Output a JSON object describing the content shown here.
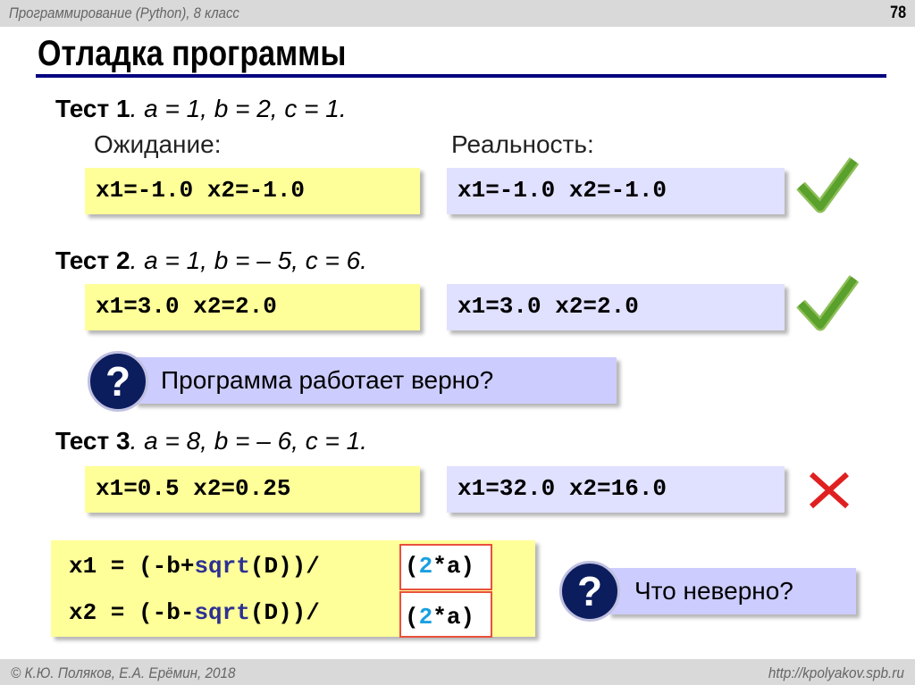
{
  "header": {
    "course": "Программирование (Python), 8 класс",
    "page_number": "78"
  },
  "title": "Отладка программы",
  "labels": {
    "expected": "Ожидание:",
    "actual": "Реальность:"
  },
  "tests": [
    {
      "name": "Тест 1",
      "params": ". a = 1, b = 2, c = 1.",
      "expected": "x1=-1.0 x2=-1.0",
      "actual": "x1=-1.0 x2=-1.0",
      "result": "pass"
    },
    {
      "name": "Тест 2",
      "params": ". a = 1, b = – 5, c = 6.",
      "expected": "x1=3.0 x2=2.0",
      "actual": "x1=3.0 x2=2.0",
      "result": "pass"
    },
    {
      "name": "Тест 3",
      "params": ". a = 8, b = – 6, c = 1.",
      "expected": "x1=0.5 x2=0.25",
      "actual": "x1=32.0 x2=16.0",
      "result": "fail"
    }
  ],
  "questions": [
    {
      "mark": "?",
      "text": "Программа работает верно?"
    },
    {
      "mark": "?",
      "text": "Что неверно?"
    }
  ],
  "code": [
    {
      "a": "x1 = (-b+",
      "fn": "sqrt",
      "b": "(D))/",
      "h1": "(",
      "n": "2",
      "h2": "*a)"
    },
    {
      "a": "x2 = (-b-",
      "fn": "sqrt",
      "b": "(D))/",
      "h1": "(",
      "n": "2",
      "h2": "*a)"
    }
  ],
  "colors": {
    "pass": "#5aa02c",
    "fail": "#e02020",
    "accent": "#000080"
  },
  "footer": {
    "copyright": "© К.Ю. Поляков, Е.А. Ерёмин, 2018",
    "url": "http://kpolyakov.spb.ru"
  }
}
